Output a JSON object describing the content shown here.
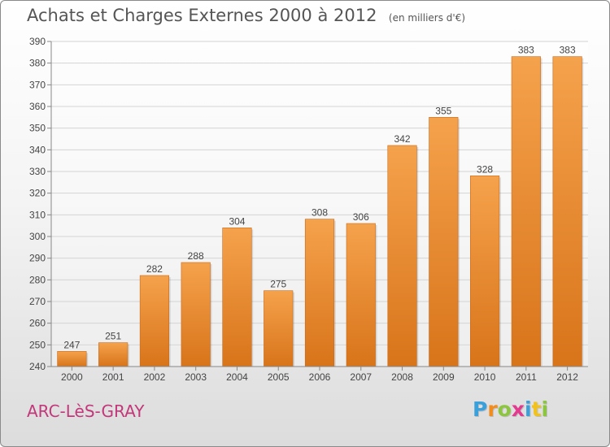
{
  "header": {
    "title": "Achats et Charges Externes 2000 à 2012",
    "unit": "(en milliers d'€)"
  },
  "footer": {
    "commune": "ARC-LèS-GRAY",
    "brand_letters": [
      "P",
      "r",
      "o",
      "x",
      "i",
      "t",
      "i"
    ],
    "brand_colors": [
      "#3aa0dc",
      "#f28c1c",
      "#8cc63f",
      "#e23a8f",
      "#3aa0dc",
      "#f2c21c",
      "#8cc63f"
    ]
  },
  "colors": {
    "bar_top": "#f5a24c",
    "bar_bottom": "#d8741a",
    "grid": "#d4d4d4",
    "axis": "#888888",
    "text": "#444444"
  },
  "chart_data": {
    "type": "bar",
    "title": "Achats et Charges Externes 2000 à 2012",
    "subtitle": "(en milliers d'€)",
    "xlabel": "",
    "ylabel": "",
    "categories": [
      "2000",
      "2001",
      "2002",
      "2003",
      "2004",
      "2005",
      "2006",
      "2007",
      "2008",
      "2009",
      "2010",
      "2011",
      "2012"
    ],
    "values": [
      247,
      251,
      282,
      288,
      304,
      275,
      308,
      306,
      342,
      355,
      328,
      383,
      383
    ],
    "ylim": [
      240,
      390
    ],
    "yticks": [
      240,
      250,
      260,
      270,
      280,
      290,
      300,
      310,
      320,
      330,
      340,
      350,
      360,
      370,
      380,
      390
    ],
    "grid": true,
    "legend": "none"
  }
}
